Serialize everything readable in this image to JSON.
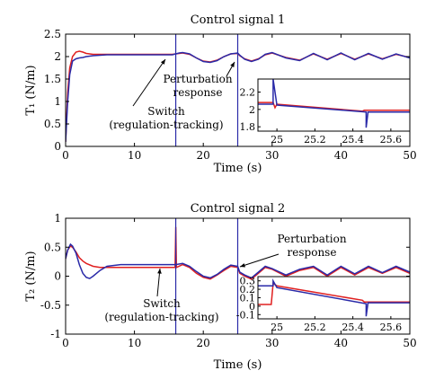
{
  "chart_data": [
    {
      "type": "line",
      "title": "Control signal 1",
      "xlabel": "Time (s)",
      "ylabel": "T₁ (N/m)",
      "xlim": [
        0,
        50
      ],
      "ylim": [
        0,
        2.5
      ],
      "xticks": [
        "0",
        "10",
        "20",
        "30",
        "40",
        "50"
      ],
      "yticks": [
        "0",
        "0.5",
        "1",
        "1.5",
        "2",
        "2.5"
      ],
      "grid": false,
      "colors": {
        "red": "#e02020",
        "blue": "#2a2aa8"
      },
      "vertical_markers": [
        16,
        25
      ],
      "series": [
        {
          "color": "#e02020",
          "x": [
            0,
            0.3,
            0.6,
            1,
            1.5,
            2,
            2.5,
            3,
            4,
            5,
            6,
            8,
            10,
            12,
            14,
            15.5,
            16,
            16.5,
            17,
            18,
            19,
            20,
            21,
            22,
            23,
            24,
            25,
            25.3,
            26,
            27,
            28,
            29,
            30,
            32,
            34,
            36,
            38,
            40,
            42,
            44,
            46,
            48,
            50
          ],
          "y": [
            0.1,
            1.2,
            1.75,
            2.0,
            2.1,
            2.12,
            2.1,
            2.07,
            2.05,
            2.05,
            2.05,
            2.05,
            2.05,
            2.05,
            2.05,
            2.05,
            2.06,
            2.07,
            2.08,
            2.05,
            1.97,
            1.9,
            1.88,
            1.92,
            2.0,
            2.06,
            2.07,
            2.02,
            1.95,
            1.9,
            1.95,
            2.04,
            2.08,
            1.98,
            1.92,
            2.06,
            1.94,
            2.07,
            1.94,
            2.06,
            1.95,
            2.05,
            1.98
          ]
        },
        {
          "color": "#2a2aa8",
          "x": [
            0,
            0.3,
            0.6,
            1,
            1.5,
            2,
            2.5,
            3,
            4,
            5,
            6,
            8,
            10,
            12,
            14,
            15.5,
            16,
            16.5,
            17,
            18,
            19,
            20,
            21,
            22,
            23,
            24,
            25,
            25.3,
            26,
            27,
            28,
            29,
            30,
            32,
            34,
            36,
            38,
            40,
            42,
            44,
            46,
            48,
            50
          ],
          "y": [
            0.1,
            1.0,
            1.6,
            1.9,
            1.95,
            1.97,
            1.98,
            2.0,
            2.02,
            2.03,
            2.04,
            2.04,
            2.04,
            2.04,
            2.04,
            2.04,
            2.06,
            2.08,
            2.09,
            2.06,
            1.97,
            1.89,
            1.87,
            1.91,
            2.0,
            2.06,
            2.08,
            2.03,
            1.94,
            1.89,
            1.94,
            2.05,
            2.09,
            1.97,
            1.91,
            2.07,
            1.93,
            2.08,
            1.93,
            2.07,
            1.94,
            2.06,
            1.97
          ]
        }
      ],
      "annotations": [
        {
          "text": "Switch",
          "x": 16,
          "y": 2.0
        },
        {
          "text": "(regulation-tracking)",
          "x": 16,
          "y": 2.0
        },
        {
          "text": "Perturbation",
          "x": 25,
          "y": 2.1
        },
        {
          "text": "response",
          "x": 25,
          "y": 2.1
        }
      ],
      "inset": {
        "xlim": [
          24.9,
          25.7
        ],
        "ylim": [
          1.75,
          2.35
        ],
        "xticks": [
          "25",
          "25.2",
          "25.4",
          "25.6"
        ],
        "yticks": [
          "1.8",
          "2",
          "2.2"
        ],
        "series": [
          {
            "color": "#e02020",
            "x": [
              24.9,
              24.98,
              24.99,
              25.0,
              25.45,
              25.46,
              25.7
            ],
            "y": [
              2.08,
              2.08,
              2.02,
              2.06,
              1.98,
              1.99,
              1.99
            ]
          },
          {
            "color": "#2a2aa8",
            "x": [
              24.9,
              24.98,
              24.98,
              25.0,
              25.47,
              25.47,
              25.48,
              25.7
            ],
            "y": [
              2.06,
              2.06,
              2.35,
              2.05,
              1.97,
              1.79,
              1.97,
              1.97
            ]
          }
        ]
      }
    },
    {
      "type": "line",
      "title": "Control signal 2",
      "xlabel": "Time (s)",
      "ylabel": "T₂ (N/m)",
      "xlim": [
        0,
        50
      ],
      "ylim": [
        -1,
        1
      ],
      "xticks": [
        "0",
        "10",
        "20",
        "30",
        "40",
        "50"
      ],
      "yticks": [
        "-1",
        "-0.5",
        "0",
        "0.5",
        "1"
      ],
      "grid": false,
      "colors": {
        "red": "#e02020",
        "blue": "#2a2aa8"
      },
      "vertical_markers": [
        16,
        25
      ],
      "series": [
        {
          "color": "#e02020",
          "x": [
            0,
            0.3,
            0.7,
            1,
            1.5,
            2,
            2.5,
            3,
            4,
            5,
            6,
            8,
            10,
            12,
            14,
            15.9,
            16,
            16.1,
            17,
            18,
            19,
            20,
            21,
            22,
            23,
            24,
            25,
            25.3,
            26,
            27,
            28,
            29,
            30,
            32,
            34,
            36,
            38,
            40,
            42,
            44,
            46,
            48,
            50
          ],
          "y": [
            0.3,
            0.45,
            0.52,
            0.5,
            0.42,
            0.32,
            0.26,
            0.22,
            0.17,
            0.15,
            0.15,
            0.15,
            0.15,
            0.15,
            0.15,
            0.15,
            0.85,
            0.15,
            0.2,
            0.15,
            0.05,
            -0.02,
            -0.05,
            0.02,
            0.1,
            0.17,
            0.15,
            0.05,
            0.0,
            -0.05,
            0.05,
            0.15,
            0.12,
            0.0,
            0.1,
            0.15,
            0.0,
            0.15,
            0.02,
            0.15,
            0.05,
            0.15,
            0.05
          ]
        },
        {
          "color": "#2a2aa8",
          "x": [
            0,
            0.3,
            0.7,
            1,
            1.5,
            2,
            2.5,
            3,
            3.5,
            4,
            5,
            6,
            8,
            10,
            12,
            14,
            16,
            17,
            18,
            19,
            20,
            21,
            22,
            23,
            24,
            25,
            25.3,
            26,
            27,
            28,
            29,
            30,
            32,
            34,
            36,
            38,
            40,
            42,
            44,
            46,
            48,
            50
          ],
          "y": [
            0.3,
            0.45,
            0.55,
            0.52,
            0.4,
            0.2,
            0.05,
            -0.02,
            -0.04,
            0.0,
            0.1,
            0.17,
            0.2,
            0.2,
            0.2,
            0.2,
            0.2,
            0.22,
            0.17,
            0.08,
            0.0,
            -0.03,
            0.03,
            0.12,
            0.19,
            0.17,
            0.07,
            0.02,
            -0.03,
            0.07,
            0.17,
            0.13,
            0.02,
            0.12,
            0.17,
            0.02,
            0.17,
            0.04,
            0.17,
            0.06,
            0.17,
            0.07
          ]
        }
      ],
      "annotations": [
        {
          "text": "Switch",
          "x": 16,
          "y": 0.2
        },
        {
          "text": "(regulation-tracking)",
          "x": 16,
          "y": 0.2
        },
        {
          "text": "Perturbation",
          "x": 25,
          "y": 0.15
        },
        {
          "text": "response",
          "x": 25,
          "y": 0.15
        }
      ],
      "inset": {
        "xlim": [
          24.9,
          25.7
        ],
        "ylim": [
          -0.15,
          0.35
        ],
        "xticks": [
          "25",
          "25.2",
          "25.4",
          "25.6"
        ],
        "yticks": [
          "0.3",
          "0.2",
          "0.1",
          "0",
          "-0.1"
        ],
        "series": [
          {
            "color": "#e02020",
            "x": [
              24.9,
              24.97,
              24.98,
              25.0,
              25.45,
              25.46,
              25.7
            ],
            "y": [
              0.02,
              0.02,
              0.27,
              0.24,
              0.07,
              0.05,
              0.05
            ]
          },
          {
            "color": "#2a2aa8",
            "x": [
              24.9,
              24.98,
              24.98,
              25.0,
              25.47,
              25.47,
              25.48,
              25.7
            ],
            "y": [
              0.24,
              0.24,
              0.3,
              0.22,
              0.03,
              -0.12,
              0.04,
              0.04
            ]
          }
        ]
      }
    }
  ]
}
